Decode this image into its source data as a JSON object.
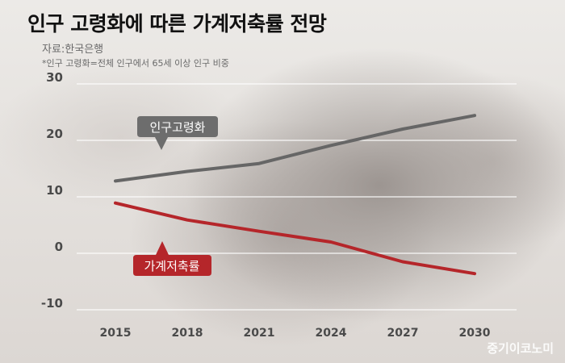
{
  "header": {
    "title": "인구 고령화에 따른 가계저축률 전망",
    "source": "자료:한국은행",
    "note": "*인구 고령화=전체 인구에서 65세 이상 인구 비중"
  },
  "watermark": "중기이코노미",
  "chart_data": {
    "type": "line",
    "x": [
      2015,
      2018,
      2021,
      2024,
      2027,
      2030
    ],
    "x_tick_labels": [
      "2015",
      "2018",
      "2021",
      "2024",
      "2027",
      "2030"
    ],
    "y_ticks": [
      30,
      20,
      10,
      0,
      -10
    ],
    "ylim": [
      -10,
      30
    ],
    "grid": true,
    "series": [
      {
        "name": "인구고령화",
        "values": [
          12.8,
          14.5,
          15.9,
          19.1,
          22.0,
          24.4
        ],
        "color": "#666666"
      },
      {
        "name": "가계저축률",
        "values": [
          8.9,
          5.9,
          3.9,
          2.0,
          -1.5,
          -3.6
        ],
        "color": "#b5262a"
      }
    ]
  }
}
